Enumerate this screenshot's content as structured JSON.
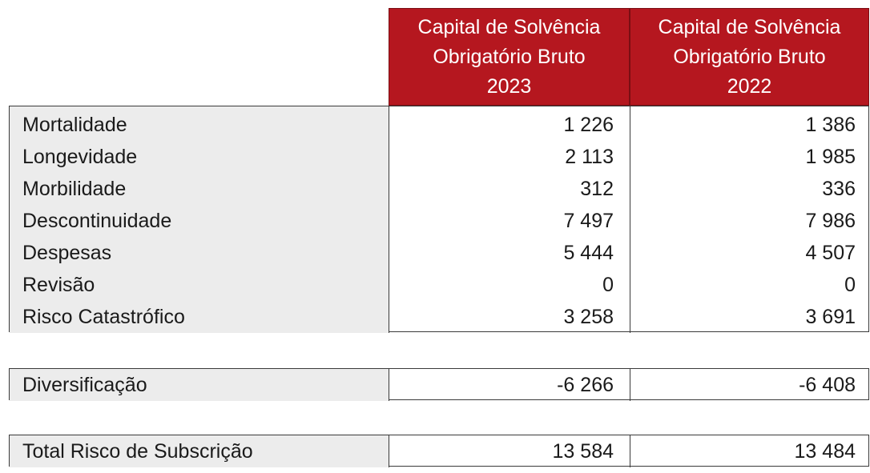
{
  "header": {
    "col2023": {
      "line1": "Capital de Solvência",
      "line2": "Obrigatório Bruto",
      "line3": "2023"
    },
    "col2022": {
      "line1": "Capital de Solvência",
      "line2": "Obrigatório Bruto",
      "line3": "2022"
    }
  },
  "rows": [
    {
      "label": "Mortalidade",
      "v2023": "1 226",
      "v2022": "1 386"
    },
    {
      "label": "Longevidade",
      "v2023": "2 113",
      "v2022": "1 985"
    },
    {
      "label": "Morbilidade",
      "v2023": "312",
      "v2022": "336"
    },
    {
      "label": "Descontinuidade",
      "v2023": "7 497",
      "v2022": "7 986"
    },
    {
      "label": "Despesas",
      "v2023": "5 444",
      "v2022": "4 507"
    },
    {
      "label": "Revisão",
      "v2023": "0",
      "v2022": "0"
    },
    {
      "label": "Risco Catastrófico",
      "v2023": "3 258",
      "v2022": "3 691"
    }
  ],
  "diversification": {
    "label": "Diversificação",
    "v2023": "-6 266",
    "v2022": "-6 408"
  },
  "total": {
    "label": "Total Risco de Subscrição",
    "v2023": "13 584",
    "v2022": "13 484"
  },
  "colors": {
    "header_bg": "#b5171f",
    "label_bg": "#ececec"
  }
}
